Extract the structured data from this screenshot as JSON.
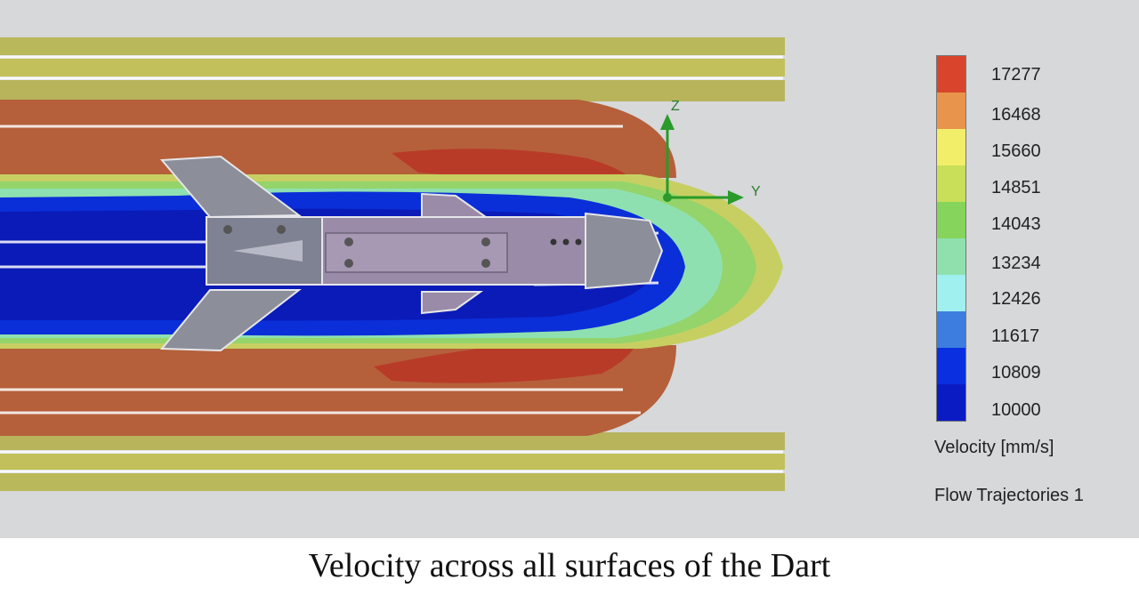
{
  "figure": {
    "caption": "Velocity across all surfaces of the Dart"
  },
  "legend": {
    "title": "Velocity [mm/s]",
    "flow_label": "Flow Trajectories 1",
    "ticks": [
      "17277",
      "16468",
      "15660",
      "14851",
      "14043",
      "13234",
      "12426",
      "11617",
      "10809",
      "10000"
    ],
    "colors": [
      "#d8452c",
      "#e8944c",
      "#f2ee6a",
      "#c9df5a",
      "#86d45c",
      "#8fe0ad",
      "#9ff0ee",
      "#3d7de0",
      "#0a2fe0",
      "#0b1bc4"
    ]
  },
  "axes": {
    "vertical_label": "Z",
    "horizontal_label": "Y"
  }
}
